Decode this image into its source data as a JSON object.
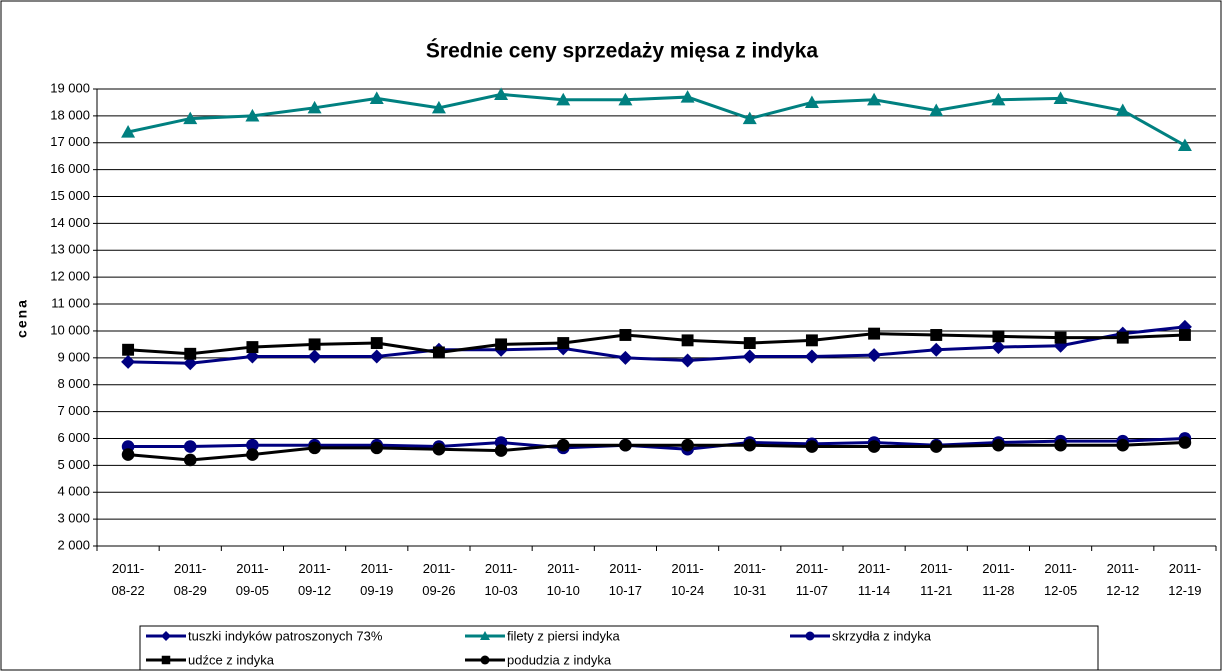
{
  "chart_data": {
    "type": "line",
    "title": "Średnie ceny sprzedaży mięsa z indyka",
    "y_label": "cena",
    "categories": [
      "2011-08-22",
      "2011-08-29",
      "2011-09-05",
      "2011-09-12",
      "2011-09-19",
      "2011-09-26",
      "2011-10-03",
      "2011-10-10",
      "2011-10-17",
      "2011-10-24",
      "2011-10-31",
      "2011-11-07",
      "2011-11-14",
      "2011-11-21",
      "2011-11-28",
      "2011-12-05",
      "2011-12-12",
      "2011-12-19"
    ],
    "ylim": [
      2000,
      19000
    ],
    "yticks": [
      {
        "value": 2000,
        "label": "2 000"
      },
      {
        "value": 3000,
        "label": "3 000"
      },
      {
        "value": 4000,
        "label": "4 000"
      },
      {
        "value": 5000,
        "label": "5 000"
      },
      {
        "value": 6000,
        "label": "6 000"
      },
      {
        "value": 7000,
        "label": "7 000"
      },
      {
        "value": 8000,
        "label": "8 000"
      },
      {
        "value": 9000,
        "label": "9 000"
      },
      {
        "value": 10000,
        "label": "10 000"
      },
      {
        "value": 11000,
        "label": "11 000"
      },
      {
        "value": 12000,
        "label": "12 000"
      },
      {
        "value": 13000,
        "label": "13 000"
      },
      {
        "value": 14000,
        "label": "14 000"
      },
      {
        "value": 15000,
        "label": "15 000"
      },
      {
        "value": 16000,
        "label": "16 000"
      },
      {
        "value": 17000,
        "label": "17 000"
      },
      {
        "value": 18000,
        "label": "18 000"
      },
      {
        "value": 19000,
        "label": "19 000"
      }
    ],
    "grid": true,
    "series": [
      {
        "name": "tuszki indyków patroszonych 73%",
        "color": "#000080",
        "marker": "diamond",
        "values": [
          8850,
          8800,
          9050,
          9050,
          9050,
          9300,
          9300,
          9350,
          9000,
          8900,
          9050,
          9050,
          9100,
          9300,
          9400,
          9450,
          9900,
          10150
        ]
      },
      {
        "name": "filety z piersi indyka",
        "color": "#008080",
        "marker": "triangle",
        "values": [
          17400,
          17900,
          18000,
          18300,
          18650,
          18300,
          18800,
          18600,
          18600,
          18700,
          17900,
          18500,
          18600,
          18200,
          18600,
          18650,
          18200,
          16900
        ]
      },
      {
        "name": "skrzydła z indyka",
        "color": "#000080",
        "marker": "circle",
        "values": [
          5700,
          5700,
          5750,
          5750,
          5750,
          5700,
          5850,
          5650,
          5750,
          5600,
          5850,
          5800,
          5850,
          5750,
          5850,
          5900,
          5900,
          6000
        ]
      },
      {
        "name": "udźce z indyka",
        "color": "#000000",
        "marker": "square",
        "values": [
          9300,
          9150,
          9400,
          9500,
          9550,
          9200,
          9500,
          9550,
          9850,
          9650,
          9550,
          9650,
          9900,
          9850,
          9800,
          9750,
          9750,
          9850
        ]
      },
      {
        "name": "podudzia z indyka",
        "color": "#000000",
        "marker": "circle",
        "values": [
          5400,
          5200,
          5400,
          5650,
          5650,
          5600,
          5550,
          5750,
          5750,
          5750,
          5750,
          5700,
          5700,
          5700,
          5750,
          5750,
          5750,
          5850
        ]
      }
    ]
  }
}
